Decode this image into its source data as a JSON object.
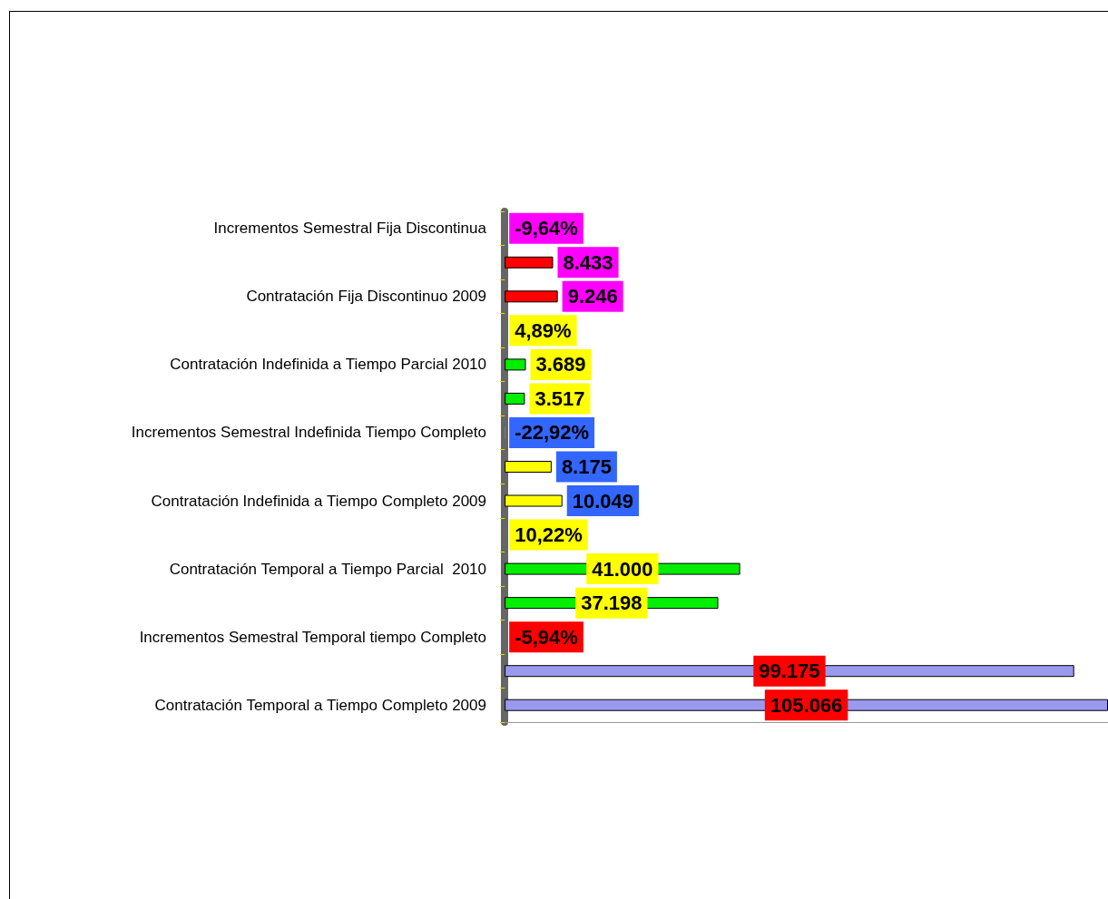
{
  "chart_data": {
    "type": "bar",
    "orientation": "horizontal",
    "categories": [
      "Incrementos Semestral Fija Discontinua",
      null,
      "Contratación Fija Discontinuo 2009",
      null,
      "Contratación Indefinida a Tiempo Parcial 2010",
      null,
      "Incrementos Semestral Indefinida Tiempo Completo",
      null,
      "Contratación Indefinida a Tiempo Completo 2009",
      null,
      "Contratación Temporal a Tiempo Parcial  2010",
      null,
      "Incrementos Semestral Temporal tiempo Completo",
      null,
      "Contratación Temporal a Tiempo Completo 2009"
    ],
    "values": [
      -9.64,
      8433,
      9246,
      4.89,
      3689,
      3517,
      -22.92,
      8175,
      10049,
      10.22,
      41000,
      37198,
      -5.94,
      99175,
      105066
    ],
    "value_labels": [
      "-9,64%",
      "8.433",
      "9.246",
      "4,89%",
      "3.689",
      "3.517",
      "-22,92%",
      "8.175",
      "10.049",
      "10,22%",
      "41.000",
      "37.198",
      "-5,94%",
      "99.175",
      "105.066"
    ],
    "colors": [
      "#ff0000",
      "#ff0000",
      "#ff0000",
      "#00ee00",
      "#00ee00",
      "#00ee00",
      "#ffff00",
      "#ffff00",
      "#ffff00",
      "#00ee00",
      "#00ee00",
      "#00ee00",
      "#9999ee",
      "#9999ee",
      "#9999ee"
    ]
  }
}
